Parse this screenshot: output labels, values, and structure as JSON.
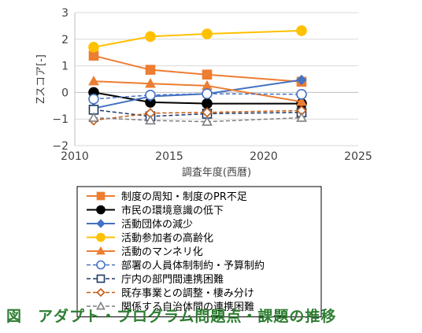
{
  "caption": "図　アダプト・プログラム問題点・課題の推移",
  "chart_data": {
    "type": "line",
    "xlabel": "調査年度(西暦)",
    "ylabel": "Zスコア[-]",
    "xlim": [
      2010,
      2025
    ],
    "ylim": [
      -2,
      3
    ],
    "x_ticks": [
      "2010",
      "2015",
      "2020",
      "2025"
    ],
    "y_ticks": [
      "−2",
      "−1",
      "0",
      "1",
      "2",
      "3"
    ],
    "x": [
      2011,
      2014,
      2017,
      2022
    ],
    "legend_position": "bottom",
    "series": [
      {
        "name": "制度の周知・制度のPR不足",
        "values": [
          1.38,
          0.85,
          0.67,
          0.4
        ],
        "color": "#ED7D31",
        "marker": "square",
        "filled": true,
        "dash": false
      },
      {
        "name": "市民の環境意識の低下",
        "values": [
          0.0,
          -0.37,
          -0.42,
          -0.42
        ],
        "color": "#000000",
        "marker": "circle",
        "filled": true,
        "dash": false
      },
      {
        "name": "活動団体の減少",
        "values": [
          -0.6,
          -0.15,
          -0.05,
          0.47
        ],
        "color": "#4472C4",
        "marker": "diamond",
        "filled": true,
        "dash": false
      },
      {
        "name": "活動参加者の高齢化",
        "values": [
          1.7,
          2.1,
          2.2,
          2.32
        ],
        "color": "#FFC000",
        "marker": "circle",
        "filled": true,
        "dash": false
      },
      {
        "name": "活動のマンネリ化",
        "values": [
          0.42,
          0.33,
          0.25,
          -0.35
        ],
        "color": "#ED7D31",
        "marker": "triangle",
        "filled": true,
        "dash": false
      },
      {
        "name": "部署の人員体制制約・予算制約",
        "values": [
          -0.25,
          -0.1,
          -0.05,
          -0.07
        ],
        "color": "#4472C4",
        "marker": "circle",
        "filled": false,
        "dash": true
      },
      {
        "name": "庁内の部門間連携困難",
        "values": [
          -0.65,
          -0.9,
          -0.8,
          -0.75
        ],
        "color": "#1F3864",
        "marker": "square",
        "filled": false,
        "dash": true
      },
      {
        "name": "既存事業との調整・棲み分け",
        "values": [
          -1.05,
          -0.78,
          -0.75,
          -0.68
        ],
        "color": "#C55A11",
        "marker": "diamond",
        "filled": false,
        "dash": true
      },
      {
        "name": "関係する自治体間の連携困難",
        "values": [
          -0.95,
          -1.05,
          -1.1,
          -0.95
        ],
        "color": "#7F7F7F",
        "marker": "triangle",
        "filled": false,
        "dash": true
      }
    ]
  }
}
